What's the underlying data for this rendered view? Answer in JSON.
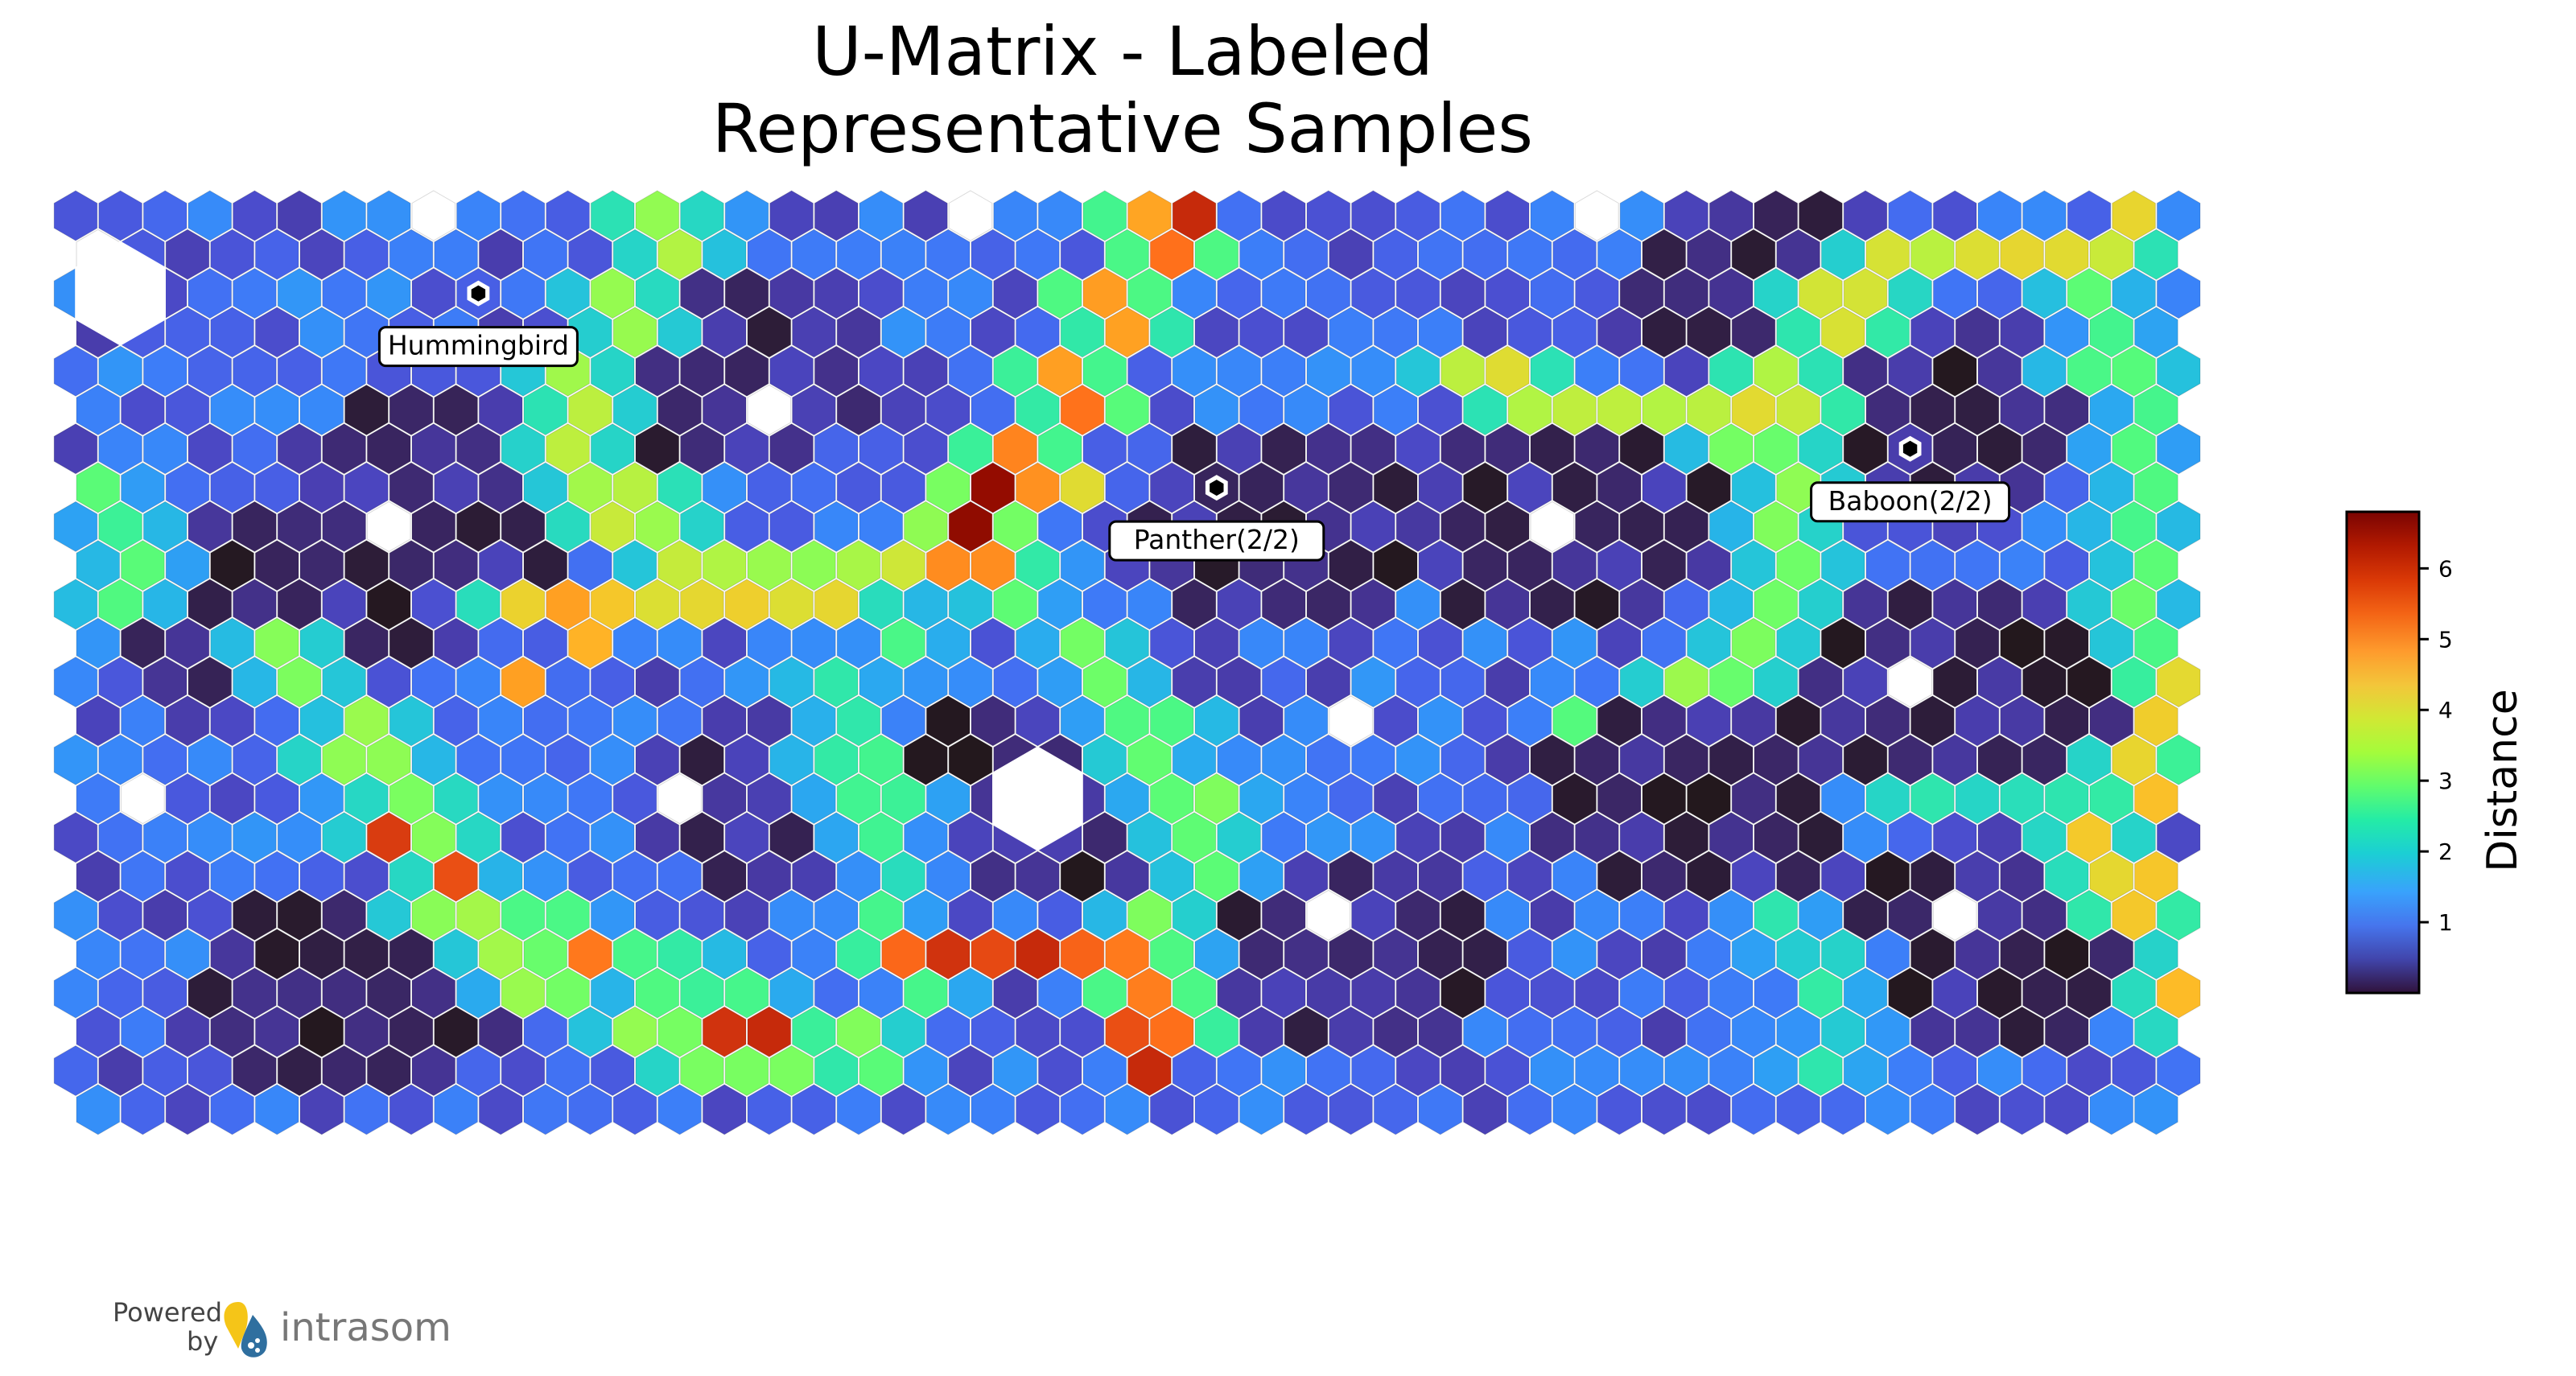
{
  "chart_data": {
    "type": "heatmap",
    "title_lines": [
      "U-Matrix - Labeled",
      "Representative Samples"
    ],
    "colorbar": {
      "label": "Distance",
      "ticks": [
        1,
        2,
        3,
        4,
        5,
        6
      ],
      "range": [
        0,
        6.8
      ],
      "colormap": "turbo"
    },
    "grid": {
      "cols": 48,
      "rows": 24,
      "shape": "hexagon"
    },
    "labels": [
      {
        "text": "Hummingbird",
        "col": 9,
        "row": 2
      },
      {
        "text": "Panther(2/2)",
        "col": 25,
        "row": 7
      },
      {
        "text": "Baboon(2/2)",
        "col": 41,
        "row": 6
      }
    ],
    "nodes_with_samples": [
      [
        0,
        1
      ],
      [
        8,
        0
      ],
      [
        20,
        0
      ],
      [
        34,
        0
      ],
      [
        15,
        5
      ],
      [
        7,
        8
      ],
      [
        33,
        8
      ],
      [
        41,
        12
      ],
      [
        28,
        13
      ],
      [
        1,
        15
      ],
      [
        13,
        15
      ],
      [
        28,
        18
      ],
      [
        42,
        18
      ]
    ],
    "large_empty_nodes": [
      [
        1,
        2
      ],
      [
        21,
        15
      ]
    ],
    "ridges": [
      {
        "path": [
          [
            13,
            0
          ],
          [
            12,
            2
          ],
          [
            11,
            4
          ],
          [
            11,
            6
          ],
          [
            12,
            8
          ],
          [
            14,
            9
          ],
          [
            16,
            9
          ],
          [
            18,
            9
          ],
          [
            20,
            9
          ]
        ],
        "value": 3.6
      },
      {
        "path": [
          [
            24,
            0
          ],
          [
            23,
            2
          ],
          [
            22,
            4
          ],
          [
            21,
            6
          ],
          [
            20,
            8
          ],
          [
            20,
            9
          ]
        ],
        "value": 5.0
      },
      {
        "path": [
          [
            20,
            7
          ],
          [
            20,
            8
          ]
        ],
        "value": 6.6
      },
      {
        "path": [
          [
            10,
            10
          ],
          [
            12,
            10
          ],
          [
            14,
            10
          ],
          [
            16,
            10
          ],
          [
            18,
            9
          ]
        ],
        "value": 4.2
      },
      {
        "path": [
          [
            4,
            11
          ],
          [
            5,
            12
          ],
          [
            6,
            13
          ],
          [
            7,
            15
          ],
          [
            8,
            17
          ],
          [
            9,
            19
          ],
          [
            12,
            21
          ],
          [
            15,
            22
          ],
          [
            17,
            21
          ]
        ],
        "value": 3.3
      },
      {
        "path": [
          [
            18,
            10
          ],
          [
            17,
            12
          ],
          [
            17,
            14
          ],
          [
            18,
            16
          ],
          [
            18,
            18
          ],
          [
            19,
            20
          ]
        ],
        "value": 2.4
      },
      {
        "path": [
          [
            21,
            10
          ],
          [
            22,
            11
          ],
          [
            23,
            12
          ],
          [
            24,
            14
          ],
          [
            25,
            16
          ],
          [
            24,
            18
          ],
          [
            23,
            19
          ]
        ],
        "value": 3.0
      },
      {
        "path": [
          [
            18,
            19
          ],
          [
            20,
            19
          ],
          [
            22,
            19
          ],
          [
            23,
            19
          ],
          [
            24,
            20
          ],
          [
            24,
            21
          ]
        ],
        "value": 5.4
      },
      {
        "path": [
          [
            31,
            4
          ],
          [
            33,
            5
          ],
          [
            35,
            5
          ],
          [
            37,
            5
          ],
          [
            38,
            4
          ],
          [
            39,
            2
          ],
          [
            40,
            1
          ],
          [
            42,
            1
          ],
          [
            44,
            1
          ],
          [
            45,
            1
          ]
        ],
        "value": 3.9
      },
      {
        "path": [
          [
            37,
            5
          ],
          [
            38,
            7
          ],
          [
            38,
            9
          ],
          [
            37,
            11
          ],
          [
            36,
            12
          ]
        ],
        "value": 3.2
      },
      {
        "path": [
          [
            45,
            1
          ],
          [
            45,
            3
          ],
          [
            46,
            5
          ],
          [
            46,
            7
          ],
          [
            46,
            9
          ],
          [
            46,
            11
          ]
        ],
        "value": 2.8
      },
      {
        "path": [
          [
            47,
            12
          ],
          [
            46,
            14
          ],
          [
            45,
            16
          ],
          [
            46,
            18
          ],
          [
            47,
            19
          ],
          [
            47,
            21
          ]
        ],
        "value": 4.3
      },
      {
        "path": [
          [
            40,
            15
          ],
          [
            42,
            15
          ],
          [
            44,
            15
          ],
          [
            45,
            15
          ]
        ],
        "value": 2.2
      },
      {
        "path": [
          [
            10,
            18
          ],
          [
            12,
            19
          ],
          [
            14,
            20
          ],
          [
            16,
            21
          ],
          [
            18,
            22
          ]
        ],
        "value": 2.6
      },
      {
        "path": [
          [
            38,
            18
          ],
          [
            39,
            20
          ],
          [
            39,
            22
          ]
        ],
        "value": 2.1
      },
      {
        "path": [
          [
            0,
            7
          ],
          [
            1,
            8
          ],
          [
            1,
            10
          ]
        ],
        "value": 2.8
      }
    ],
    "hot_nodes": [
      {
        "col": 25,
        "row": 0,
        "value": 6.0
      },
      {
        "col": 11,
        "row": 10,
        "value": 4.8
      },
      {
        "col": 11,
        "row": 11,
        "value": 4.6
      },
      {
        "col": 10,
        "row": 12,
        "value": 4.8
      },
      {
        "col": 7,
        "row": 16,
        "value": 5.8
      },
      {
        "col": 8,
        "row": 17,
        "value": 5.6
      },
      {
        "col": 11,
        "row": 19,
        "value": 5.2
      },
      {
        "col": 14,
        "row": 21,
        "value": 5.9
      },
      {
        "col": 15,
        "row": 21,
        "value": 6.0
      },
      {
        "col": 19,
        "row": 9,
        "value": 5.0
      },
      {
        "col": 20,
        "row": 9,
        "value": 4.4
      },
      {
        "col": 19,
        "row": 19,
        "value": 5.9
      },
      {
        "col": 21,
        "row": 19,
        "value": 6.0
      },
      {
        "col": 23,
        "row": 21,
        "value": 5.6
      },
      {
        "col": 24,
        "row": 22,
        "value": 6.0
      },
      {
        "col": 22,
        "row": 7,
        "value": 4.1
      },
      {
        "col": 46,
        "row": 0,
        "value": 4.2
      },
      {
        "col": 46,
        "row": 13,
        "value": 4.3
      },
      {
        "col": 47,
        "row": 21,
        "value": 4.5
      },
      {
        "col": 48,
        "row": 22,
        "value": 4.3
      },
      {
        "col": 33,
        "row": 13,
        "value": 2.8
      },
      {
        "col": 18,
        "row": 14,
        "value": 2.6
      }
    ],
    "base_ranges": {
      "cluster_interior": [
        0.0,
        0.5
      ],
      "background": [
        0.4,
        1.3
      ]
    }
  },
  "footer": {
    "powered": "Powered",
    "by": "by",
    "brand": "intrasom"
  }
}
